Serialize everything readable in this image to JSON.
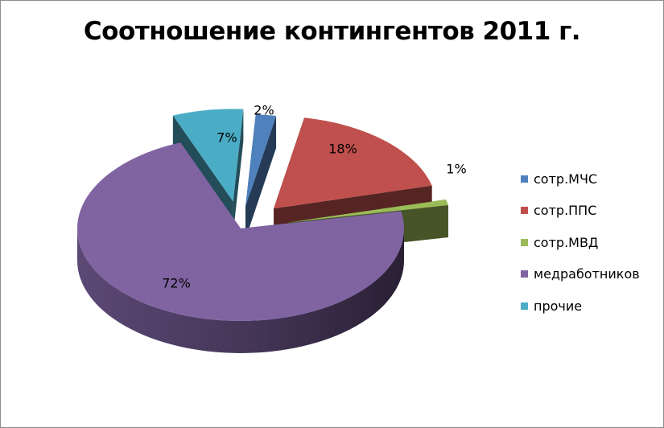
{
  "chart_data": {
    "type": "pie",
    "title": "Соотношение контингентов 2011 г.",
    "categories": [
      "сотр.МЧС",
      "сотр.ППС",
      "сотр.МВД",
      "медработников",
      "прочие"
    ],
    "values": [
      2,
      18,
      1,
      72,
      7
    ],
    "data_labels": [
      "2%",
      "18%",
      "1%",
      "72%",
      "7%"
    ],
    "colors": [
      "#4F81BD",
      "#C0504D",
      "#9BBB59",
      "#8064A2",
      "#4BACC6"
    ],
    "exploded": true,
    "three_d": true,
    "legend": "right"
  }
}
